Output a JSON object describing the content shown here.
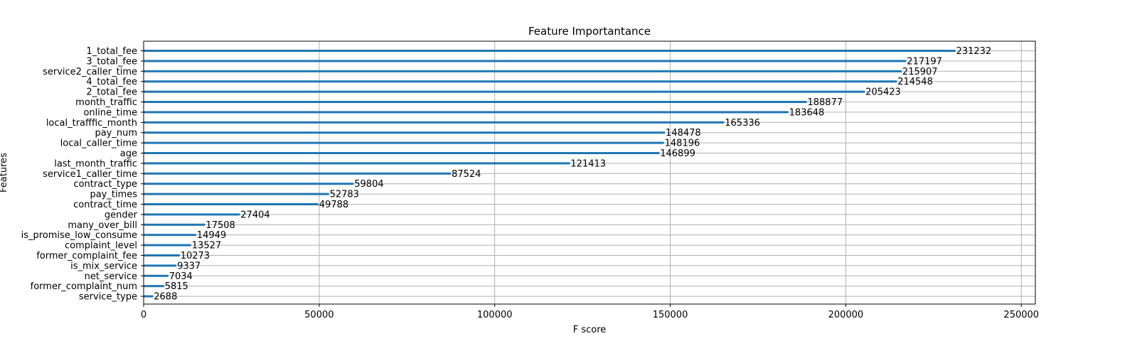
{
  "chart_data": {
    "type": "bar",
    "orientation": "horizontal",
    "title": "Feature Importantance",
    "xlabel": "F score",
    "ylabel": "Features",
    "xlim": [
      0,
      254000
    ],
    "xticks": [
      0,
      50000,
      100000,
      150000,
      200000,
      250000
    ],
    "grid": true,
    "bar_color": "#1f77b4",
    "categories": [
      "1_total_fee",
      "3_total_fee",
      "service2_caller_time",
      "4_total_fee",
      "2_total_fee",
      "month_traffic",
      "online_time",
      "local_trafffic_month",
      "pay_num",
      "local_caller_time",
      "age",
      "last_month_traffic",
      "service1_caller_time",
      "contract_type",
      "pay_times",
      "contract_time",
      "gender",
      "many_over_bill",
      "is_promise_low_consume",
      "complaint_level",
      "former_complaint_fee",
      "is_mix_service",
      "net_service",
      "former_complaint_num",
      "service_type"
    ],
    "values": [
      231232,
      217197,
      215907,
      214548,
      205423,
      188877,
      183648,
      165336,
      148478,
      148196,
      146899,
      121413,
      87524,
      59804,
      52783,
      49788,
      27404,
      17508,
      14949,
      13527,
      10273,
      9337,
      7034,
      5815,
      2688
    ]
  }
}
